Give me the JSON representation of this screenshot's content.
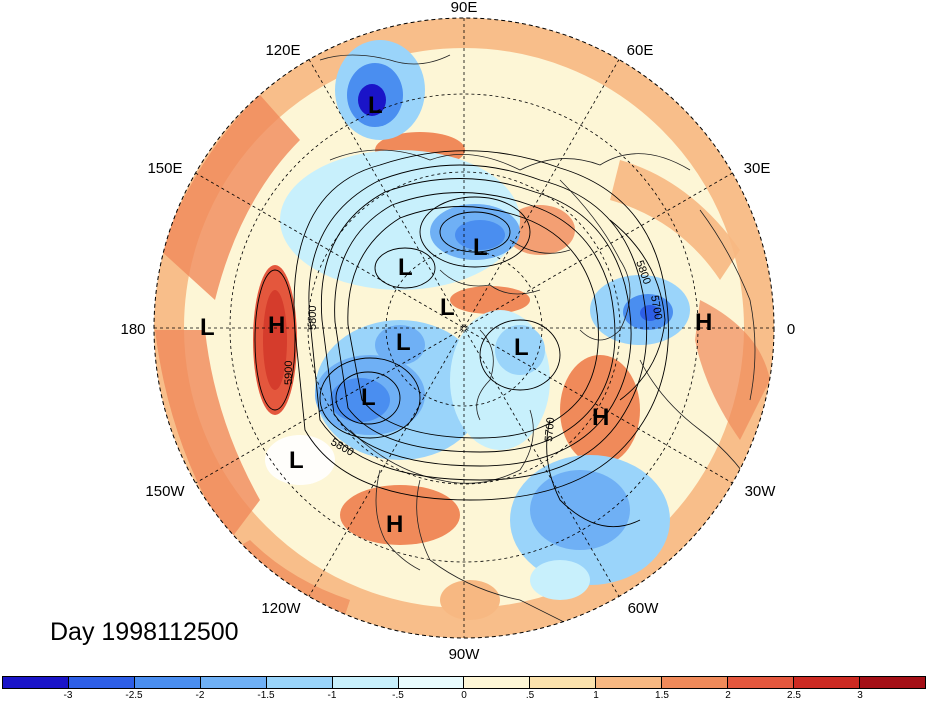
{
  "date_label": "Day 1998112500",
  "lon_labels": {
    "e90": "90E",
    "e120": "120E",
    "e60": "60E",
    "e150": "150E",
    "e30": "30E",
    "w180": "180",
    "zero": "0",
    "w150": "150W",
    "w30": "30W",
    "w120": "120W",
    "w60": "60W",
    "w90": "90W"
  },
  "contour_labels": {
    "c1": "5800",
    "c2": "5700",
    "c3": "5800",
    "c4": "5900",
    "c5": "5800",
    "c6": "5700"
  },
  "hl_markers": {
    "l1": "L",
    "l2": "L",
    "l3": "L",
    "l4": "L",
    "l5": "L",
    "l6": "L",
    "l7": "L",
    "l8": "L",
    "l9": "L",
    "h1": "H",
    "h2": "H",
    "h3": "H",
    "h4": "H"
  },
  "colorbar": {
    "colors": [
      "#1a14c8",
      "#2d5ee6",
      "#4a8ef0",
      "#6fb0f5",
      "#9ad4fa",
      "#c8f0fc",
      "#e8fbfd",
      "#fdf6d6",
      "#fbe2ad",
      "#f7b882",
      "#f08a5a",
      "#e4573d",
      "#cc2a22",
      "#a40f16"
    ],
    "ticks": [
      "-3",
      "-2.5",
      "-2",
      "-1.5",
      "-1",
      "-.5",
      "0",
      ".5",
      "1",
      "1.5",
      "2",
      "2.5",
      "3"
    ]
  }
}
